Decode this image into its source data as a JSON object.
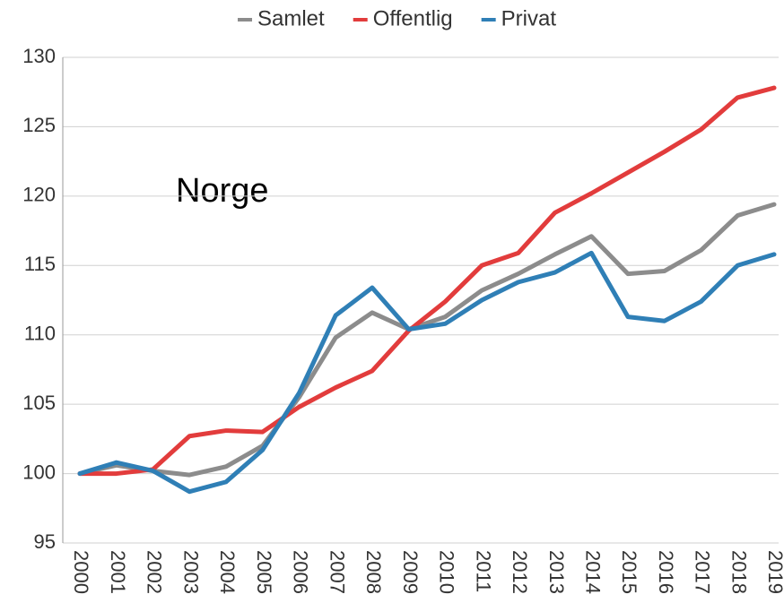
{
  "chart_data": {
    "type": "line",
    "annotation": "Norge",
    "categories": [
      "2000",
      "2001",
      "2002",
      "2003",
      "2004",
      "2005",
      "2006",
      "2007",
      "2008",
      "2009",
      "2010",
      "2011",
      "2012",
      "2013",
      "2014",
      "2015",
      "2016",
      "2017",
      "2018",
      "2019"
    ],
    "series": [
      {
        "name": "Samlet",
        "color": "#8c8c8c",
        "values": [
          100,
          100.6,
          100.2,
          99.9,
          100.5,
          102,
          105.5,
          109.8,
          111.6,
          110.4,
          111.3,
          113.2,
          114.4,
          115.8,
          117.1,
          114.4,
          114.6,
          116.1,
          118.6,
          119.4
        ]
      },
      {
        "name": "Offentlig",
        "color": "#e23c3c",
        "values": [
          100,
          100,
          100.3,
          102.7,
          103.1,
          103,
          104.8,
          106.2,
          107.4,
          110.3,
          112.4,
          115,
          115.9,
          118.8,
          120.2,
          121.7,
          123.2,
          124.8,
          127.1,
          127.8
        ]
      },
      {
        "name": "Privat",
        "color": "#2f7fb6",
        "values": [
          100,
          100.8,
          100.2,
          98.7,
          99.4,
          101.7,
          105.8,
          111.4,
          113.4,
          110.4,
          110.8,
          112.5,
          113.8,
          114.5,
          115.9,
          111.3,
          111,
          112.4,
          115,
          115.8
        ]
      }
    ],
    "ylim": [
      95,
      130
    ],
    "yticks": [
      95,
      100,
      105,
      110,
      115,
      120,
      125,
      130
    ],
    "grid": true,
    "legend": "top"
  }
}
